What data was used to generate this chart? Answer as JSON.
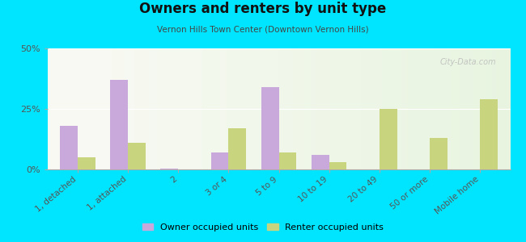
{
  "title": "Owners and renters by unit type",
  "subtitle": "Vernon Hills Town Center (Downtown Vernon Hills)",
  "categories": [
    "1, detached",
    "1, attached",
    "2",
    "3 or 4",
    "5 to 9",
    "10 to 19",
    "20 to 49",
    "50 or more",
    "Mobile home"
  ],
  "owner_values": [
    18,
    37,
    0.3,
    7,
    34,
    6,
    0,
    0,
    0
  ],
  "renter_values": [
    5,
    11,
    0,
    17,
    7,
    3,
    25,
    13,
    29
  ],
  "owner_color": "#c9a8dc",
  "renter_color": "#c8d47e",
  "bg_outer": "#00e5ff",
  "ylim": [
    0,
    50
  ],
  "yticks": [
    0,
    25,
    50
  ],
  "ytick_labels": [
    "0%",
    "25%",
    "50%"
  ],
  "legend_owner": "Owner occupied units",
  "legend_renter": "Renter occupied units",
  "bar_width": 0.35,
  "watermark": "City-Data.com"
}
